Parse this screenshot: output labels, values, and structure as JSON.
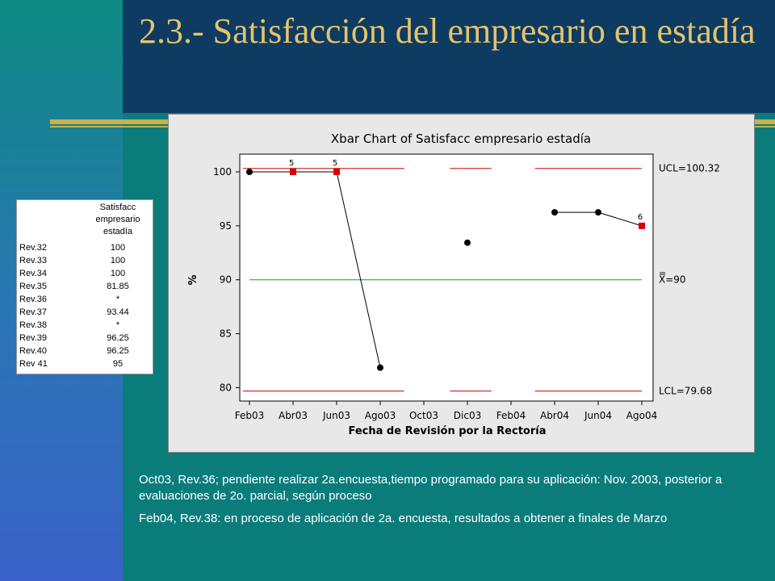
{
  "slide": {
    "title": "2.3.- Satisfacción del empresario en estadía"
  },
  "table": {
    "header": [
      "Satisfacc",
      "empresario",
      "estadía"
    ],
    "rows": [
      {
        "label": "Rev.32",
        "value": "100"
      },
      {
        "label": "Rev.33",
        "value": "100"
      },
      {
        "label": "Rev.34",
        "value": "100"
      },
      {
        "label": "Rev.35",
        "value": "81.85"
      },
      {
        "label": "Rev.36",
        "value": "*"
      },
      {
        "label": "Rev.37",
        "value": "93.44"
      },
      {
        "label": "Rev.38",
        "value": "*"
      },
      {
        "label": "Rev.39",
        "value": "96.25"
      },
      {
        "label": "Rev.40",
        "value": "96.25"
      },
      {
        "label": "Rev 41",
        "value": "95"
      }
    ]
  },
  "chart_data": {
    "type": "line",
    "title": "Xbar Chart of Satisfacc empresario estadía",
    "xlabel": "Fecha de Revisión por la Rectoría",
    "ylabel": "%",
    "categories": [
      "Feb03",
      "Abr03",
      "Jun03",
      "Ago03",
      "Oct03",
      "Dic03",
      "Feb04",
      "Abr04",
      "Jun04",
      "Ago04"
    ],
    "series": [
      {
        "values": [
          100,
          100,
          100,
          81.85,
          null,
          93.44,
          null,
          96.25,
          96.25,
          95
        ]
      }
    ],
    "flags": [
      {
        "index": 1,
        "label": "5"
      },
      {
        "index": 2,
        "label": "5"
      },
      {
        "index": 9,
        "label": "6"
      }
    ],
    "ucl": 100.32,
    "lcl": 79.68,
    "center": 90,
    "ucl_label": "UCL=100.32",
    "lcl_label": "LCL=79.68",
    "center_label_bar": "=",
    "center_label": "X=90",
    "yticks": [
      80,
      85,
      90,
      95,
      100
    ],
    "ylim": [
      79,
      102
    ],
    "colors": {
      "control": "#cc0000",
      "center": "#00aa00",
      "point": "#000000",
      "flag": "#dd0000"
    }
  },
  "notes": [
    "Oct03, Rev.36; pendiente realizar 2a.encuesta,tiempo programado para su aplicación: Nov. 2003, posterior a evaluaciones de 2o. parcial, según proceso",
    "Feb04, Rev.38: en proceso de aplicación de 2a. encuesta, resultados a obtener a finales de Marzo"
  ]
}
